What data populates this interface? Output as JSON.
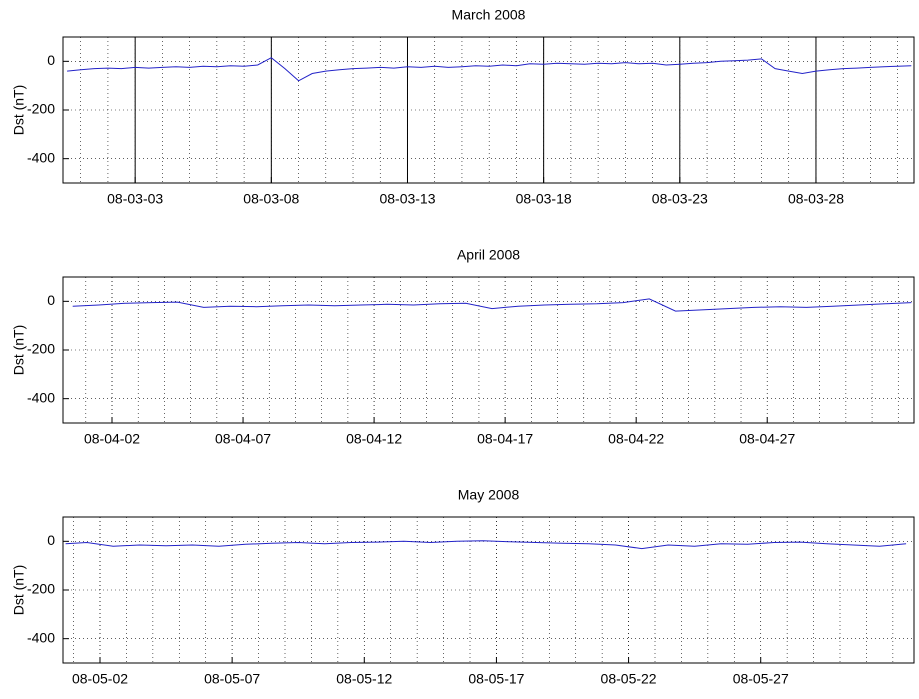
{
  "chart_data": [
    {
      "type": "line",
      "title": "March 2008",
      "ylabel": "Dst (nT)",
      "xlim": [
        0.35,
        31.6
      ],
      "ylim": [
        -500,
        100
      ],
      "yticks": [
        -400,
        -200,
        0
      ],
      "xticks": [
        {
          "value": 3,
          "label": "08-03-03"
        },
        {
          "value": 8,
          "label": "08-03-08"
        },
        {
          "value": 13,
          "label": "08-03-13"
        },
        {
          "value": 18,
          "label": "08-03-18"
        },
        {
          "value": 23,
          "label": "08-03-23"
        },
        {
          "value": 28,
          "label": "08-03-28"
        }
      ],
      "xminor": [
        1,
        2,
        3,
        4,
        5,
        6,
        7,
        8,
        9,
        10,
        11,
        12,
        13,
        14,
        15,
        16,
        17,
        18,
        19,
        20,
        21,
        22,
        23,
        24,
        25,
        26,
        27,
        28,
        29,
        30,
        31
      ],
      "major_grid": "solid",
      "grid": true,
      "series": [
        {
          "name": "Dst",
          "color": "#2323c8",
          "x": [
            0.5,
            1,
            1.5,
            2,
            2.5,
            3,
            3.5,
            4,
            4.5,
            5,
            5.5,
            6,
            6.5,
            7,
            7.5,
            8,
            8.5,
            9,
            9.5,
            10,
            10.5,
            11,
            11.5,
            12,
            12.5,
            13,
            13.5,
            14,
            14.5,
            15,
            15.5,
            16,
            16.5,
            17,
            17.5,
            18,
            18.5,
            19,
            19.5,
            20,
            20.5,
            21,
            21.5,
            22,
            22.5,
            23,
            23.5,
            24,
            24.5,
            25,
            25.5,
            26,
            26.5,
            27,
            27.5,
            28,
            28.5,
            29,
            29.5,
            30,
            30.5,
            31,
            31.5
          ],
          "values": [
            -40,
            -35,
            -30,
            -28,
            -30,
            -25,
            -28,
            -25,
            -22,
            -25,
            -20,
            -22,
            -18,
            -20,
            -15,
            15,
            -30,
            -80,
            -50,
            -40,
            -35,
            -30,
            -28,
            -25,
            -28,
            -22,
            -25,
            -20,
            -25,
            -22,
            -18,
            -20,
            -15,
            -18,
            -10,
            -12,
            -8,
            -10,
            -12,
            -8,
            -10,
            -5,
            -10,
            -8,
            -15,
            -12,
            -8,
            -5,
            0,
            2,
            5,
            10,
            -30,
            -40,
            -50,
            -40,
            -35,
            -30,
            -28,
            -25,
            -22,
            -20,
            -18
          ]
        }
      ]
    },
    {
      "type": "line",
      "title": "April 2008",
      "ylabel": "Dst (nT)",
      "xlim": [
        0.13,
        32.6
      ],
      "ylim": [
        -500,
        100
      ],
      "yticks": [
        -400,
        -200,
        0
      ],
      "xticks": [
        {
          "value": 2,
          "label": "08-04-02"
        },
        {
          "value": 7,
          "label": "08-04-07"
        },
        {
          "value": 12,
          "label": "08-04-12"
        },
        {
          "value": 17,
          "label": "08-04-17"
        },
        {
          "value": 22,
          "label": "08-04-22"
        },
        {
          "value": 27,
          "label": "08-04-27"
        }
      ],
      "xminor": [
        1,
        2,
        3,
        4,
        5,
        6,
        7,
        8,
        9,
        10,
        11,
        12,
        13,
        14,
        15,
        16,
        17,
        18,
        19,
        20,
        21,
        22,
        23,
        24,
        25,
        26,
        27,
        28,
        29,
        30,
        31,
        32
      ],
      "major_grid": "dotted",
      "grid": true,
      "series": [
        {
          "name": "Dst",
          "color": "#2323c8",
          "x": [
            0.5,
            1.5,
            2.5,
            3.5,
            4.5,
            5.5,
            6.5,
            7.5,
            8.5,
            9.5,
            10.5,
            11.5,
            12.5,
            13.5,
            14.5,
            15.5,
            16.5,
            17.5,
            18.5,
            19.5,
            20.5,
            21.5,
            22.5,
            23.5,
            24.5,
            25.5,
            26.5,
            27.5,
            28.5,
            29.5,
            30.5,
            31.5,
            32.5
          ],
          "values": [
            -20,
            -15,
            -8,
            -5,
            -3,
            -25,
            -20,
            -22,
            -18,
            -15,
            -18,
            -15,
            -12,
            -15,
            -10,
            -8,
            -30,
            -20,
            -15,
            -12,
            -10,
            -5,
            10,
            -40,
            -35,
            -30,
            -25,
            -22,
            -25,
            -20,
            -15,
            -10,
            -5
          ]
        }
      ]
    },
    {
      "type": "line",
      "title": "May 2008",
      "ylabel": "Dst (nT)",
      "xlim": [
        0.6,
        32.8
      ],
      "ylim": [
        -500,
        100
      ],
      "yticks": [
        -400,
        -200,
        0
      ],
      "xticks": [
        {
          "value": 2,
          "label": "08-05-02"
        },
        {
          "value": 7,
          "label": "08-05-07"
        },
        {
          "value": 12,
          "label": "08-05-12"
        },
        {
          "value": 17,
          "label": "08-05-17"
        },
        {
          "value": 22,
          "label": "08-05-22"
        },
        {
          "value": 27,
          "label": "08-05-27"
        }
      ],
      "xminor": [
        1,
        2,
        3,
        4,
        5,
        6,
        7,
        8,
        9,
        10,
        11,
        12,
        13,
        14,
        15,
        16,
        17,
        18,
        19,
        20,
        21,
        22,
        23,
        24,
        25,
        26,
        27,
        28,
        29,
        30,
        31,
        32
      ],
      "major_grid": "dotted",
      "grid": true,
      "series": [
        {
          "name": "Dst",
          "color": "#2323c8",
          "x": [
            0.7,
            1.5,
            2.5,
            3.5,
            4.5,
            5.5,
            6.5,
            7.5,
            8.5,
            9.5,
            10.5,
            11.5,
            12.5,
            13.5,
            14.5,
            15.5,
            16.5,
            17.5,
            18.5,
            19.5,
            20.5,
            21.5,
            22.5,
            23.5,
            24.5,
            25.5,
            26.5,
            27.5,
            28.5,
            29.5,
            30.5,
            31.5,
            32.5
          ],
          "values": [
            -10,
            -5,
            -20,
            -15,
            -18,
            -15,
            -20,
            -12,
            -8,
            -5,
            -10,
            -5,
            -3,
            0,
            -5,
            0,
            2,
            -2,
            -5,
            -8,
            -10,
            -15,
            -30,
            -15,
            -20,
            -10,
            -12,
            -5,
            -3,
            -10,
            -15,
            -20,
            -10
          ]
        }
      ]
    }
  ]
}
